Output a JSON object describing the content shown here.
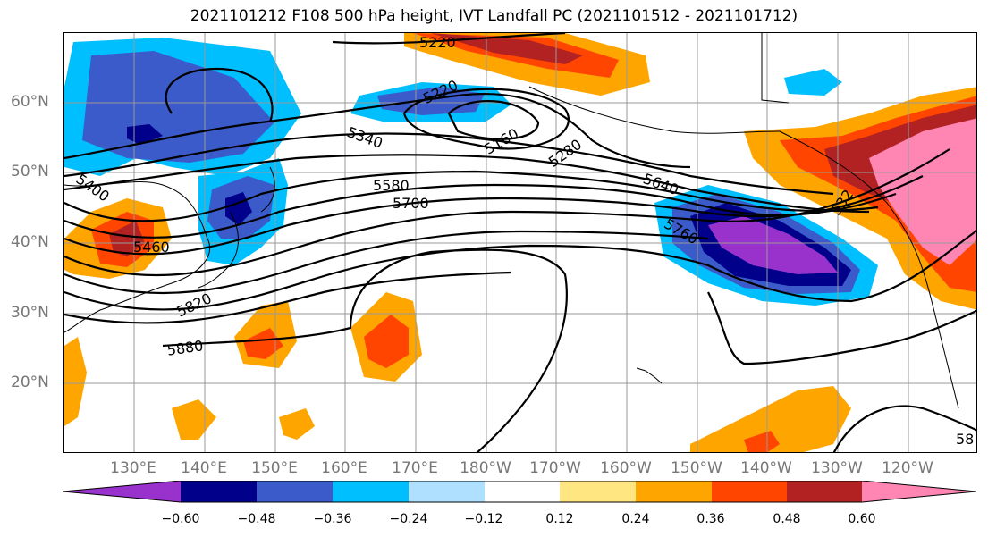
{
  "title": "2021101212 F108 500 hPa height, IVT Landfall PC (2021101512 - 2021101712)",
  "map": {
    "lat_labels": [
      "60°N",
      "50°N",
      "40°N",
      "30°N",
      "20°N"
    ],
    "lon_labels": [
      "130°E",
      "140°E",
      "150°E",
      "160°E",
      "170°E",
      "180°W",
      "170°W",
      "160°W",
      "150°W",
      "140°W",
      "130°W",
      "120°W"
    ],
    "contour_labels": [
      "5220",
      "5220",
      "5160",
      "5280",
      "5340",
      "5400",
      "5460",
      "5580",
      "5700",
      "5640",
      "5760",
      "5820",
      "5880",
      "532",
      "58"
    ]
  },
  "colorbar": {
    "ticks": [
      "−0.60",
      "−0.48",
      "−0.36",
      "−0.24",
      "−0.12",
      "0.12",
      "0.24",
      "0.36",
      "0.48",
      "0.60"
    ],
    "colors": [
      "#9932CC",
      "#00008B",
      "#3A5BC9",
      "#00BFFF",
      "#B0E0FF",
      "#FFFFFF",
      "#FFE680",
      "#FFA500",
      "#FF4500",
      "#B22222",
      "#FF85B3"
    ]
  }
}
